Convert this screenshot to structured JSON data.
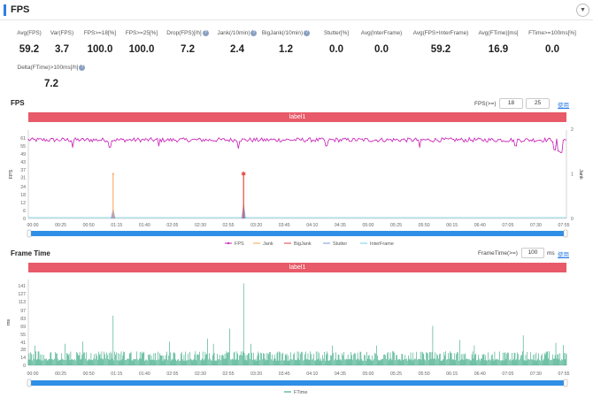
{
  "header": {
    "title": "FPS",
    "collapse_icon": "chevron-down-icon"
  },
  "stats": [
    {
      "label": "Avg(FPS)",
      "value": "59.2",
      "help": false
    },
    {
      "label": "Var(FPS)",
      "value": "3.7",
      "help": false
    },
    {
      "label": "FPS>=18[%]",
      "value": "100.0",
      "help": false
    },
    {
      "label": "FPS>=25[%]",
      "value": "100.0",
      "help": false
    },
    {
      "label": "Drop(FPS)[/h]",
      "value": "7.2",
      "help": true
    },
    {
      "label": "Jank(/10min)",
      "value": "2.4",
      "help": true
    },
    {
      "label": "BigJank(/10min)",
      "value": "1.2",
      "help": true
    },
    {
      "label": "Stutter[%]",
      "value": "0.0",
      "help": false
    },
    {
      "label": "Avg(InterFrame)",
      "value": "0.0",
      "help": false
    },
    {
      "label": "Avg(FPS+InterFrame)",
      "value": "59.2",
      "help": false
    },
    {
      "label": "Avg(FTime)[ms]",
      "value": "16.9",
      "help": false
    },
    {
      "label": "FTime>=100ms[%]",
      "value": "0.0",
      "help": false
    },
    {
      "label": "Delta(FTime)>100ms[/h]",
      "value": "7.2",
      "help": true
    }
  ],
  "fps_section": {
    "title": "FPS",
    "threshold_label": "FPS(>=)",
    "threshold_1": "18",
    "threshold_2": "25",
    "link_label": "使用",
    "band_label": "label1",
    "y_axis_label": "FPS",
    "y2_axis_label": "Jank"
  },
  "frametime_section": {
    "title": "Frame Time",
    "threshold_label": "FrameTime(>=)",
    "threshold_value": "100",
    "unit": "ms",
    "link_label": "使用",
    "band_label": "label1",
    "y_axis_label": "ms"
  },
  "colors": {
    "fps": "#c81cb5",
    "jank": "#f5a05a",
    "bigjank": "#e63c3c",
    "stutter": "#7a9ad6",
    "interframe": "#6fd0e8",
    "ftime": "#1e9e72",
    "band": "#e85a69",
    "scrollbar": "#2f8fe6"
  },
  "chart_data": [
    {
      "type": "line",
      "title": "FPS",
      "ylabel": "FPS",
      "y2label": "Jank",
      "ylim": [
        0,
        67
      ],
      "y2lim": [
        0,
        2
      ],
      "yticks": [
        0,
        6,
        12,
        18,
        24,
        31,
        37,
        43,
        49,
        55,
        61
      ],
      "y2ticks": [
        0,
        1,
        2
      ],
      "x_tick_labels": [
        "00:00",
        "00:25",
        "00:50",
        "01:15",
        "01:40",
        "02:05",
        "02:30",
        "02:55",
        "03:20",
        "03:45",
        "04:10",
        "04:35",
        "05:00",
        "05:25",
        "05:50",
        "06:15",
        "06:40",
        "07:05",
        "07:30",
        "07:55"
      ],
      "x_range_seconds": [
        0,
        495
      ],
      "legend": [
        "FPS",
        "Jank",
        "BigJank",
        "Stutter",
        "InterFrame"
      ],
      "legend_position": "bottom",
      "grid": false,
      "series": [
        {
          "name": "FPS",
          "axis": "left",
          "baseline": 59.5,
          "typical_range": [
            56,
            61
          ],
          "dips": [
            {
              "t": 41,
              "v": 54
            },
            {
              "t": 75,
              "v": 54
            },
            {
              "t": 120,
              "v": 55
            },
            {
              "t": 193,
              "v": 53
            },
            {
              "t": 274,
              "v": 55
            },
            {
              "t": 360,
              "v": 54
            },
            {
              "t": 448,
              "v": 55
            },
            {
              "t": 484,
              "v": 52
            },
            {
              "t": 488,
              "v": 51
            },
            {
              "t": 490,
              "v": 50
            }
          ]
        },
        {
          "name": "Jank",
          "axis": "right",
          "events": [
            {
              "t": 78,
              "v": 1
            },
            {
              "t": 198,
              "v": 1
            }
          ]
        },
        {
          "name": "BigJank",
          "axis": "right",
          "events": [
            {
              "t": 198,
              "v": 1
            }
          ]
        },
        {
          "name": "Stutter",
          "axis": "left",
          "events": [
            {
              "t": 78,
              "v": 8
            },
            {
              "t": 198,
              "v": 13
            }
          ]
        },
        {
          "name": "InterFrame",
          "axis": "left",
          "values": "0 throughout"
        }
      ]
    },
    {
      "type": "bar",
      "title": "Frame Time",
      "ylabel": "ms",
      "ylim": [
        0,
        152
      ],
      "yticks": [
        0,
        14,
        28,
        41,
        55,
        69,
        83,
        97,
        113,
        127,
        141
      ],
      "x_tick_labels": [
        "00:00",
        "00:25",
        "00:50",
        "01:15",
        "01:40",
        "02:05",
        "02:30",
        "02:55",
        "03:20",
        "03:45",
        "04:10",
        "04:35",
        "05:00",
        "05:25",
        "05:50",
        "06:15",
        "06:40",
        "07:05",
        "07:30",
        "07:55"
      ],
      "x_range_seconds": [
        0,
        495
      ],
      "legend": [
        "FTime"
      ],
      "legend_position": "bottom",
      "threshold_ms": 100,
      "series": [
        {
          "name": "FTime",
          "baseline": 16.7,
          "typical_range": [
            8,
            25
          ],
          "spikes": [
            {
              "t": 6,
              "v": 35
            },
            {
              "t": 34,
              "v": 38
            },
            {
              "t": 50,
              "v": 42
            },
            {
              "t": 78,
              "v": 88
            },
            {
              "t": 130,
              "v": 42
            },
            {
              "t": 165,
              "v": 47
            },
            {
              "t": 170,
              "v": 38
            },
            {
              "t": 185,
              "v": 65
            },
            {
              "t": 198,
              "v": 145
            },
            {
              "t": 205,
              "v": 38
            },
            {
              "t": 280,
              "v": 35
            },
            {
              "t": 320,
              "v": 35
            },
            {
              "t": 372,
              "v": 70
            },
            {
              "t": 397,
              "v": 45
            },
            {
              "t": 410,
              "v": 35
            },
            {
              "t": 455,
              "v": 53
            },
            {
              "t": 485,
              "v": 40
            },
            {
              "t": 492,
              "v": 36
            }
          ]
        }
      ]
    }
  ]
}
